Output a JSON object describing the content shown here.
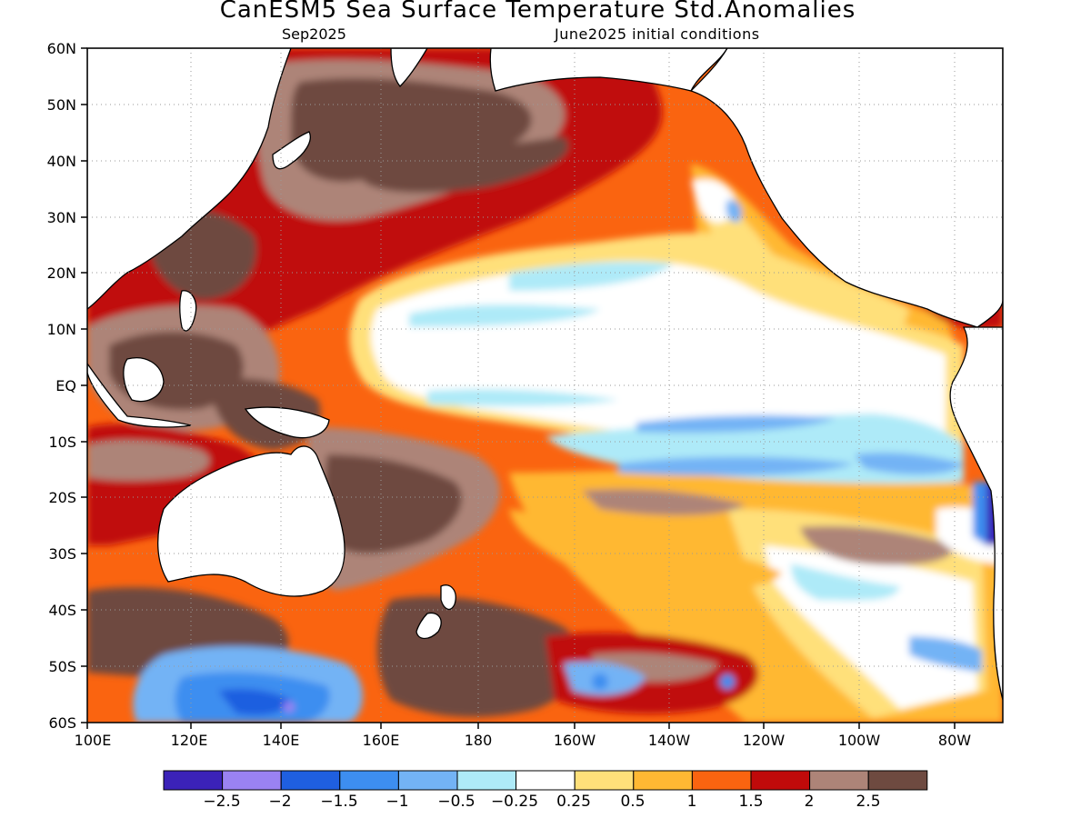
{
  "title": "CanESM5 Sea Surface Temperature Std.Anomalies",
  "subtitle_valid": "Sep2025",
  "subtitle_init": "June2025 initial conditions",
  "lat_ticks": [
    "60N",
    "50N",
    "40N",
    "30N",
    "20N",
    "10N",
    "EQ",
    "10S",
    "20S",
    "30S",
    "40S",
    "50S",
    "60S"
  ],
  "lon_ticks": [
    "100E",
    "120E",
    "140E",
    "160E",
    "180",
    "160W",
    "140W",
    "120W",
    "100W",
    "80W"
  ],
  "colorbar": {
    "colors": [
      "#3b22b8",
      "#9a82f2",
      "#1f5fe0",
      "#3d8ef0",
      "#73b3f5",
      "#aeeaf8",
      "#ffffff",
      "#ffe07a",
      "#ffb833",
      "#fa6410",
      "#c00a0a",
      "#ad8478",
      "#6e4a40"
    ],
    "labels": [
      "−2.5",
      "−2",
      "−1.5",
      "−1",
      "−0.5",
      "−0.25",
      "0.25",
      "0.5",
      "1",
      "1.5",
      "2",
      "2.5"
    ]
  },
  "map_data": {
    "region": {
      "lon_range": [
        "100E",
        "70W"
      ],
      "lat_range": [
        "60S",
        "60N"
      ]
    },
    "field": "SST standardized anomaly",
    "features": [
      {
        "area": "Western Pacific / Maritime Continent",
        "anomaly": "> 2.5"
      },
      {
        "area": "North Pacific 30N-50N",
        "anomaly": "> 2.5"
      },
      {
        "area": "Central equatorial Pacific",
        "anomaly": "-0.25 to 0.25"
      },
      {
        "area": "Eastern tropical South Pacific 5S-15S",
        "anomaly": "-0.5 to -1.5"
      },
      {
        "area": "Off Peru ~25S",
        "anomaly": "< -2.5"
      },
      {
        "area": "Southern Ocean south of Australia ~55S",
        "anomaly": "-1 to -2.5"
      },
      {
        "area": "Tasman Sea / New Zealand",
        "anomaly": "> 2.5"
      }
    ]
  }
}
